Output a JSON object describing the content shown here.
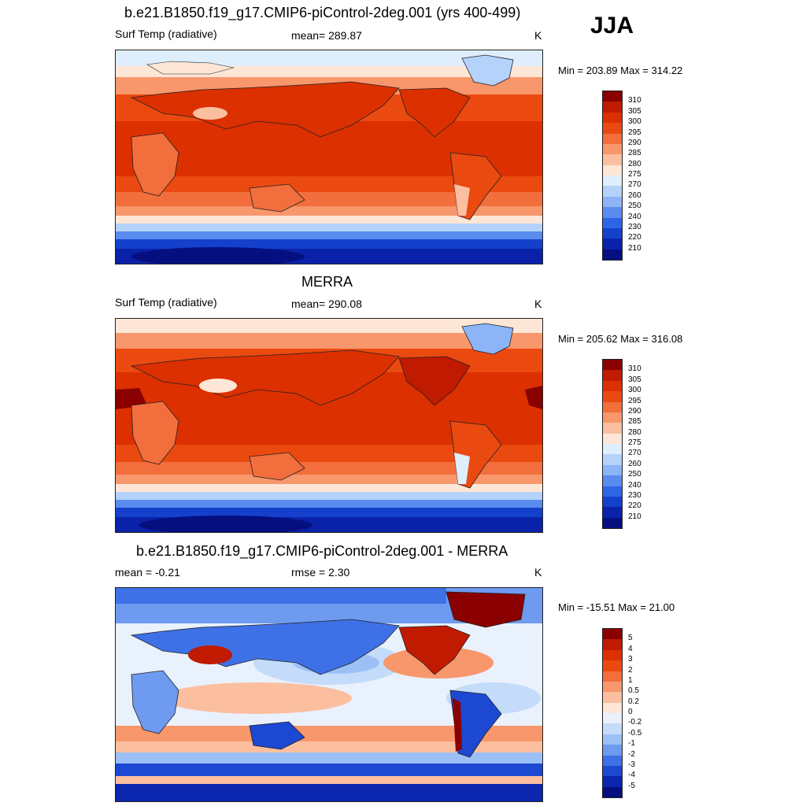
{
  "season": "JJA",
  "panels": [
    {
      "title": "b.e21.B1850.f19_g17.CMIP6-piControl-2deg.001 (yrs 400-499)",
      "left_label": "Surf Temp (radiative)",
      "center_label": "mean= 289.87",
      "units": "K",
      "minmax": "Min = 203.89 Max = 314.22",
      "colorbar": {
        "labels": [
          "310",
          "305",
          "300",
          "295",
          "290",
          "285",
          "280",
          "275",
          "270",
          "260",
          "250",
          "240",
          "230",
          "220",
          "210"
        ],
        "colors": [
          "#8a0000",
          "#c01a00",
          "#dc3000",
          "#ea4a10",
          "#f26e3c",
          "#f8966c",
          "#fbbfa0",
          "#fde6d6",
          "#dfeefc",
          "#b4d2fa",
          "#8cb4f6",
          "#5a8cef",
          "#2e64e6",
          "#1440cc",
          "#0a22aa",
          "#050f80"
        ]
      }
    },
    {
      "title": "MERRA",
      "left_label": "Surf Temp (radiative)",
      "center_label": "mean= 290.08",
      "units": "K",
      "minmax": "Min = 205.62 Max = 316.08",
      "colorbar": {
        "labels": [
          "310",
          "305",
          "300",
          "295",
          "290",
          "285",
          "280",
          "275",
          "270",
          "260",
          "250",
          "240",
          "230",
          "220",
          "210"
        ],
        "colors": [
          "#8a0000",
          "#c01a00",
          "#dc3000",
          "#ea4a10",
          "#f26e3c",
          "#f8966c",
          "#fbbfa0",
          "#fde6d6",
          "#dfeefc",
          "#b4d2fa",
          "#8cb4f6",
          "#5a8cef",
          "#2e64e6",
          "#1440cc",
          "#0a22aa",
          "#050f80"
        ]
      }
    },
    {
      "title": "b.e21.B1850.f19_g17.CMIP6-piControl-2deg.001 - MERRA",
      "left_label": "mean =  -0.21",
      "center_label": "rmse =   2.30",
      "units": "K",
      "minmax": "Min = -15.51 Max =  21.00",
      "colorbar": {
        "labels": [
          "5",
          "4",
          "3",
          "2",
          "1",
          "0.5",
          "0.2",
          "0",
          "-0.2",
          "-0.5",
          "-1",
          "-2",
          "-3",
          "-4",
          "-5"
        ],
        "colors": [
          "#8a0000",
          "#c01a00",
          "#dc3000",
          "#ea4a10",
          "#f26e3c",
          "#f8966c",
          "#fbbfa0",
          "#fde6d6",
          "#e9f1fc",
          "#c4dbfa",
          "#9cc0f6",
          "#6e9af0",
          "#3e70e6",
          "#1c48d2",
          "#0a26ae",
          "#050f80"
        ]
      }
    }
  ]
}
